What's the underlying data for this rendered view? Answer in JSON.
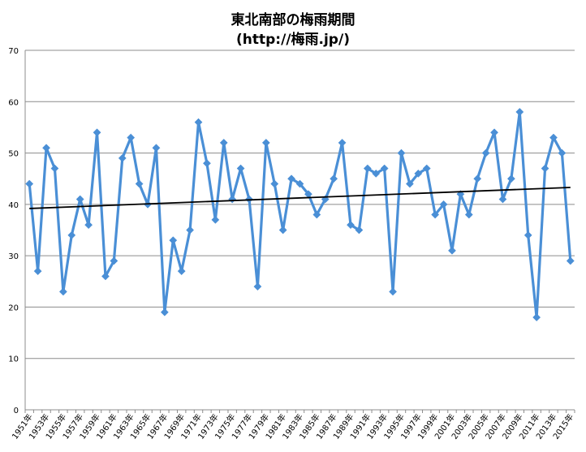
{
  "chart_data": {
    "type": "line",
    "title": "東北南部の梅雨期間",
    "subtitle": "(http://梅雨.jp/)",
    "x": [
      1951,
      1952,
      1953,
      1954,
      1955,
      1956,
      1957,
      1958,
      1959,
      1960,
      1961,
      1962,
      1963,
      1964,
      1965,
      1966,
      1967,
      1968,
      1969,
      1970,
      1971,
      1972,
      1973,
      1974,
      1975,
      1976,
      1977,
      1978,
      1979,
      1980,
      1981,
      1982,
      1983,
      1984,
      1985,
      1986,
      1987,
      1988,
      1989,
      1990,
      1991,
      1992,
      1993,
      1994,
      1995,
      1996,
      1997,
      1998,
      1999,
      2000,
      2001,
      2002,
      2003,
      2004,
      2005,
      2006,
      2007,
      2008,
      2009,
      2010,
      2011,
      2012,
      2013,
      2014,
      2015
    ],
    "x_tick_labels": [
      "1951年",
      "1953年",
      "1955年",
      "1957年",
      "1959年",
      "1961年",
      "1963年",
      "1965年",
      "1967年",
      "1969年",
      "1971年",
      "1973年",
      "1975年",
      "1977年",
      "1979年",
      "1981年",
      "1983年",
      "1985年",
      "1987年",
      "1989年",
      "1991年",
      "1993年",
      "1995年",
      "1997年",
      "1999年",
      "2001年",
      "2003年",
      "2005年",
      "2007年",
      "2009年",
      "2011年",
      "2013年",
      "2015年"
    ],
    "series": [
      {
        "values": [
          44,
          27,
          51,
          47,
          23,
          34,
          41,
          36,
          54,
          26,
          29,
          49,
          53,
          44,
          40,
          51,
          19,
          33,
          27,
          35,
          56,
          48,
          37,
          52,
          41,
          47,
          41,
          24,
          52,
          44,
          35,
          45,
          44,
          42,
          38,
          41,
          45,
          52,
          36,
          35,
          47,
          46,
          47,
          23,
          50,
          44,
          46,
          47,
          38,
          40,
          31,
          42,
          38,
          45,
          50,
          54,
          41,
          45,
          58,
          34,
          18,
          47,
          53,
          50,
          29
        ],
        "color": "#4a8fd6"
      }
    ],
    "trendline": {
      "start": 39.2,
      "end": 43.3,
      "color": "#000000"
    },
    "yticks": [
      0,
      10,
      20,
      30,
      40,
      50,
      60,
      70
    ],
    "ylim": [
      0,
      70
    ],
    "grid": true,
    "legend": "none"
  }
}
